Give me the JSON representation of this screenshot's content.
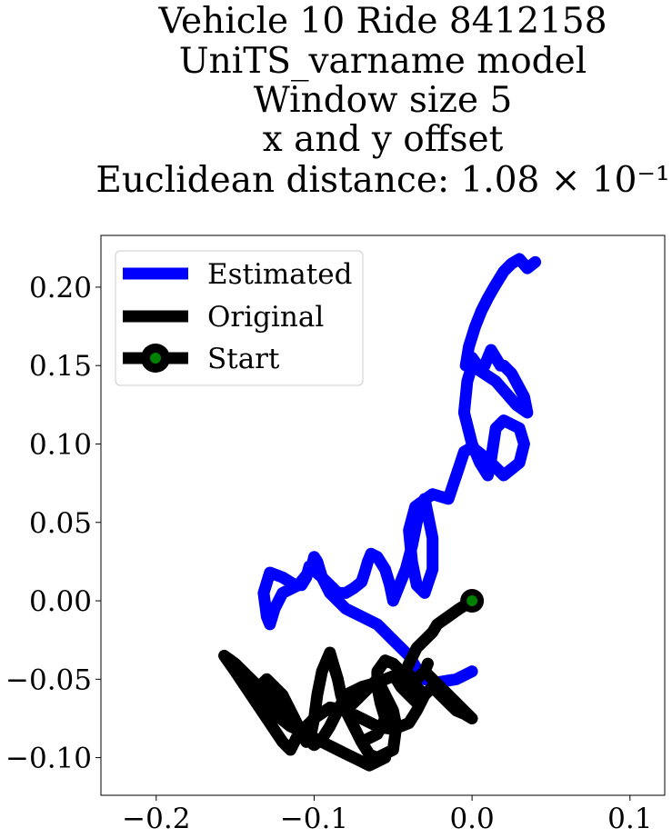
{
  "chart_data": {
    "type": "line",
    "title_lines": [
      "Vehicle 10 Ride 8412158",
      "UniTS_varname model",
      "Window size 5",
      "x and y offset",
      "Euclidean distance: 1.08 × 10⁻¹"
    ],
    "xlabel": "",
    "ylabel": "",
    "xlim": [
      -0.235,
      0.122
    ],
    "ylim": [
      -0.124,
      0.233
    ],
    "x_ticks": [
      -0.2,
      -0.1,
      0.0,
      0.1
    ],
    "x_tick_labels": [
      "−0.2",
      "−0.1",
      "0.0",
      "0.1"
    ],
    "y_ticks": [
      0.2,
      0.15,
      0.1,
      0.05,
      0.0,
      -0.05,
      -0.1
    ],
    "y_tick_labels": [
      "0.20",
      "0.15",
      "0.10",
      "0.05",
      "0.00",
      "−0.05",
      "−0.10"
    ],
    "grid": false,
    "legend_position": "upper-left",
    "colors": {
      "estimated": "#0000ff",
      "original": "#000000",
      "start_fill": "#008000",
      "start_edge": "#000000"
    },
    "series": [
      {
        "name": "Estimated",
        "x": [
          0.0,
          -0.01,
          -0.022,
          -0.03,
          -0.034,
          -0.04,
          -0.05,
          -0.06,
          -0.07,
          -0.08,
          -0.09,
          -0.095,
          -0.098,
          -0.1,
          -0.102,
          -0.11,
          -0.12,
          -0.125,
          -0.128,
          -0.13,
          -0.132,
          -0.128,
          -0.12,
          -0.112,
          -0.108,
          -0.105,
          -0.103,
          -0.095,
          -0.085,
          -0.08,
          -0.075,
          -0.07,
          -0.068,
          -0.066,
          -0.064,
          -0.06,
          -0.055,
          -0.052,
          -0.05,
          -0.046,
          -0.042,
          -0.038,
          -0.035,
          -0.032,
          -0.03,
          -0.028,
          -0.025,
          -0.025,
          -0.03,
          -0.035,
          -0.038,
          -0.04,
          -0.036,
          -0.025,
          -0.015,
          -0.01,
          -0.005,
          0.0,
          0.01,
          0.02,
          0.03,
          0.033,
          0.03,
          0.02,
          0.015,
          0.012,
          0.01,
          0.005,
          0.0,
          -0.005,
          -0.003,
          0.0,
          0.015,
          0.028,
          0.035,
          0.033,
          0.025,
          0.02,
          0.018,
          0.012,
          0.008,
          0.005,
          0.0,
          -0.004,
          -0.002,
          0.002,
          0.006,
          0.01,
          0.014,
          0.02,
          0.025,
          0.03,
          0.035,
          0.04
        ],
        "y": [
          -0.045,
          -0.05,
          -0.052,
          -0.05,
          -0.045,
          -0.035,
          -0.025,
          -0.015,
          -0.01,
          -0.005,
          0.005,
          0.015,
          0.025,
          0.028,
          0.02,
          0.01,
          0.005,
          -0.005,
          -0.015,
          -0.01,
          0.005,
          0.018,
          0.015,
          0.01,
          0.01,
          0.015,
          0.022,
          0.015,
          0.005,
          0.005,
          0.008,
          0.012,
          0.018,
          0.025,
          0.03,
          0.028,
          0.02,
          0.01,
          0.0,
          0.01,
          0.02,
          0.035,
          0.05,
          0.06,
          0.065,
          0.055,
          0.04,
          0.02,
          0.005,
          0.01,
          0.025,
          0.045,
          0.06,
          0.068,
          0.065,
          0.08,
          0.095,
          0.098,
          0.09,
          0.08,
          0.088,
          0.1,
          0.11,
          0.115,
          0.11,
          0.09,
          0.08,
          0.088,
          0.1,
          0.12,
          0.14,
          0.15,
          0.14,
          0.125,
          0.12,
          0.13,
          0.145,
          0.15,
          0.15,
          0.16,
          0.15,
          0.148,
          0.155,
          0.15,
          0.162,
          0.175,
          0.185,
          0.193,
          0.2,
          0.21,
          0.215,
          0.218,
          0.212,
          0.216
        ]
      },
      {
        "name": "Original",
        "x": [
          0.0,
          -0.008,
          -0.015,
          -0.022,
          -0.025,
          -0.03,
          -0.035,
          -0.04,
          -0.042,
          -0.048,
          -0.045,
          -0.04,
          -0.035,
          -0.03,
          -0.025,
          -0.02,
          -0.015,
          -0.01,
          -0.005,
          0.0,
          -0.005,
          -0.015,
          -0.025,
          -0.03,
          -0.028,
          -0.03,
          -0.035,
          -0.045,
          -0.05,
          -0.055,
          -0.06,
          -0.06,
          -0.058,
          -0.055,
          -0.06,
          -0.07,
          -0.075,
          -0.08,
          -0.07,
          -0.06,
          -0.055,
          -0.05,
          -0.048,
          -0.05,
          -0.06,
          -0.065,
          -0.07,
          -0.075,
          -0.08,
          -0.083,
          -0.085,
          -0.088,
          -0.09,
          -0.095,
          -0.098,
          -0.1,
          -0.102,
          -0.105,
          -0.11,
          -0.12,
          -0.13,
          -0.14,
          -0.15,
          -0.157,
          -0.15,
          -0.14,
          -0.13,
          -0.12,
          -0.115,
          -0.11,
          -0.1,
          -0.09,
          -0.08,
          -0.07,
          -0.06,
          -0.05,
          -0.04,
          -0.035,
          -0.03,
          -0.04,
          -0.05,
          -0.06,
          -0.07,
          -0.08,
          -0.085,
          -0.09,
          -0.095,
          -0.1,
          -0.105,
          -0.11,
          -0.115,
          -0.12,
          -0.13,
          -0.135,
          -0.13,
          -0.125,
          -0.115,
          -0.105,
          -0.095,
          -0.085,
          -0.075,
          -0.065,
          -0.055
        ],
        "y": [
          0.0,
          -0.005,
          -0.01,
          -0.015,
          -0.02,
          -0.025,
          -0.03,
          -0.04,
          -0.045,
          -0.05,
          -0.055,
          -0.06,
          -0.065,
          -0.06,
          -0.055,
          -0.06,
          -0.065,
          -0.07,
          -0.072,
          -0.075,
          -0.07,
          -0.06,
          -0.05,
          -0.045,
          -0.04,
          -0.045,
          -0.05,
          -0.045,
          -0.04,
          -0.038,
          -0.045,
          -0.055,
          -0.065,
          -0.075,
          -0.085,
          -0.09,
          -0.08,
          -0.07,
          -0.06,
          -0.05,
          -0.06,
          -0.07,
          -0.08,
          -0.095,
          -0.1,
          -0.098,
          -0.09,
          -0.08,
          -0.07,
          -0.06,
          -0.05,
          -0.04,
          -0.033,
          -0.045,
          -0.06,
          -0.075,
          -0.085,
          -0.09,
          -0.08,
          -0.07,
          -0.06,
          -0.05,
          -0.04,
          -0.035,
          -0.045,
          -0.06,
          -0.075,
          -0.09,
          -0.095,
          -0.085,
          -0.075,
          -0.068,
          -0.07,
          -0.075,
          -0.08,
          -0.082,
          -0.078,
          -0.07,
          -0.06,
          -0.05,
          -0.048,
          -0.052,
          -0.055,
          -0.06,
          -0.07,
          -0.08,
          -0.088,
          -0.092,
          -0.088,
          -0.08,
          -0.07,
          -0.06,
          -0.05,
          -0.055,
          -0.065,
          -0.072,
          -0.08,
          -0.085,
          -0.09,
          -0.095,
          -0.1,
          -0.105,
          -0.1
        ]
      }
    ],
    "start_point": {
      "name": "Start",
      "x": 0.0,
      "y": 0.0
    },
    "legend": [
      {
        "label": "Estimated",
        "kind": "line",
        "color": "#0000ff"
      },
      {
        "label": "Original",
        "kind": "line",
        "color": "#000000"
      },
      {
        "label": "Start",
        "kind": "marker",
        "color": "#000000",
        "fill": "#008000"
      }
    ]
  }
}
